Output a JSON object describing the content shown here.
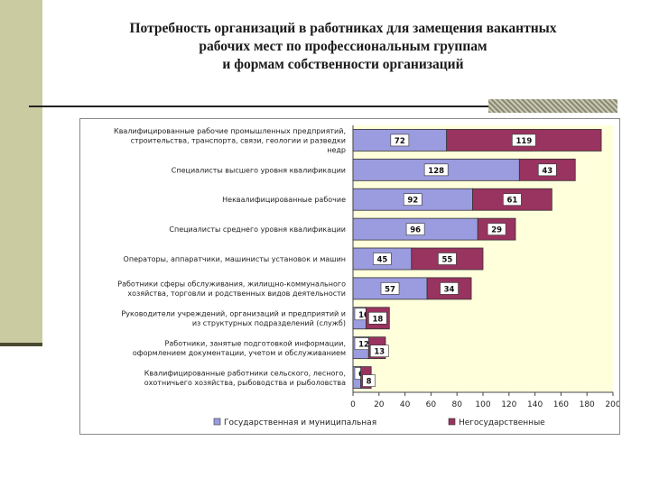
{
  "title": {
    "line1": "Потребность организаций в работниках для замещения вакантных",
    "line2": "рабочих мест по профессиональным группам",
    "line3": "и формам собственности организаций"
  },
  "chart_data": {
    "type": "bar",
    "orientation": "horizontal",
    "stacked": true,
    "categories": [
      [
        "Квалифицированные рабочие промышленных предприятий,",
        "строительства, транспорта, связи, геологии и разведки",
        "недр"
      ],
      [
        "Специалисты высшего уровня квалификации"
      ],
      [
        "Неквалифицированные рабочие"
      ],
      [
        "Специалисты среднего уровня квалификации"
      ],
      [
        "Операторы, аппаратчики, машинисты установок и машин"
      ],
      [
        "Работники сферы обслуживания, жилищно-коммунального",
        "хозяйства, торговли и родственных видов деятельности"
      ],
      [
        "Руководители учреждений, организаций и предприятий  и",
        "из структурных подразделений (служб)"
      ],
      [
        "Работники, занятые подготовкой информации,",
        "оформлением  документации, учетом и обслуживанием"
      ],
      [
        "Квалифицированные работники сельского, лесного,",
        "охотничьего хозяйства, рыбоводства и рыболовства"
      ]
    ],
    "series": [
      {
        "name": "Государственная и муниципальная",
        "color": "#9b9bdf",
        "values": [
          72,
          128,
          92,
          96,
          45,
          57,
          10,
          12,
          6
        ]
      },
      {
        "name": "Негосударственные",
        "color": "#99335f",
        "values": [
          119,
          43,
          61,
          29,
          55,
          34,
          18,
          13,
          8
        ]
      }
    ],
    "xlim": [
      0,
      200
    ],
    "xticks": [
      0,
      20,
      40,
      60,
      80,
      100,
      120,
      140,
      160,
      180,
      200
    ],
    "legend_position": "bottom"
  }
}
